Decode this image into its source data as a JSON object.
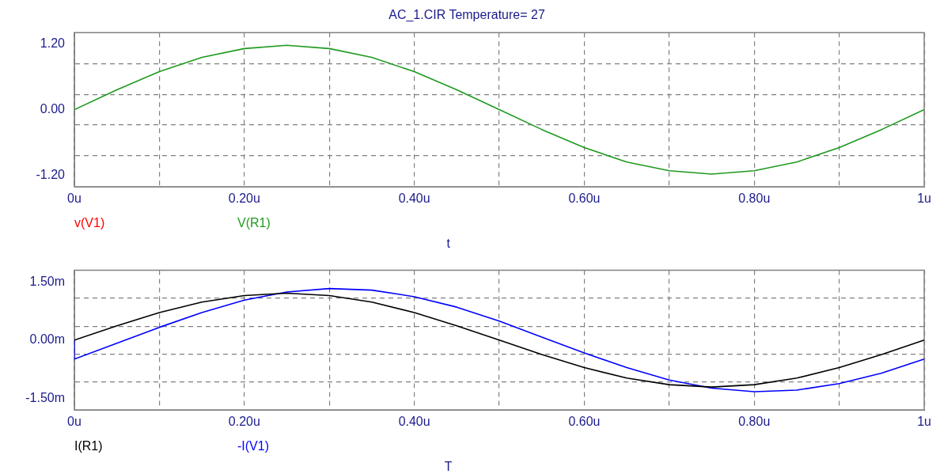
{
  "chart_data": [
    {
      "type": "line",
      "title": "AC_1.CIR Temperature= 27",
      "xlabel": "t",
      "legend": "bottom left",
      "grid": true,
      "marker": "none",
      "line_style": "solid",
      "x": [
        0,
        0.05,
        0.1,
        0.15,
        0.2,
        0.25,
        0.3,
        0.35,
        0.4,
        0.45,
        0.5,
        0.55,
        0.6,
        0.65,
        0.7,
        0.75,
        0.8,
        0.85,
        0.9,
        0.95,
        1
      ],
      "xlim": [
        0,
        1
      ],
      "xticks": [
        {
          "value": 0,
          "label": "0u"
        },
        {
          "value": 0.1,
          "label": null
        },
        {
          "value": 0.2,
          "label": "0.20u"
        },
        {
          "value": 0.3,
          "label": null
        },
        {
          "value": 0.4,
          "label": "0.40u"
        },
        {
          "value": 0.5,
          "label": null
        },
        {
          "value": 0.6,
          "label": "0.60u"
        },
        {
          "value": 0.7,
          "label": null
        },
        {
          "value": 0.8,
          "label": "0.80u"
        },
        {
          "value": 0.9,
          "label": null
        },
        {
          "value": 1,
          "label": "1u"
        }
      ],
      "ylim": [
        -1.4,
        1.4
      ],
      "yticks": [
        {
          "value": 1.2,
          "label": "1.20"
        },
        {
          "value": 0.84,
          "label": null
        },
        {
          "value": 0.28,
          "label": null
        },
        {
          "value": 0,
          "label": "0.00"
        },
        {
          "value": -0.28,
          "label": null
        },
        {
          "value": -0.84,
          "label": null
        },
        {
          "value": -1.2,
          "label": "-1.20"
        }
      ],
      "series": [
        {
          "name": "v(V1)",
          "color": "#ff0000",
          "values": [
            null,
            null,
            null,
            null,
            null,
            null,
            null,
            null,
            null,
            null,
            null,
            null,
            null,
            null,
            null,
            null,
            null,
            null,
            null,
            null,
            null
          ]
        },
        {
          "name": "V(R1)",
          "color": "#1e9a1e",
          "values": [
            0,
            0.36,
            0.69,
            0.95,
            1.11,
            1.17,
            1.11,
            0.95,
            0.69,
            0.36,
            0,
            -0.36,
            -0.69,
            -0.95,
            -1.11,
            -1.17,
            -1.11,
            -0.95,
            -0.69,
            -0.36,
            0
          ]
        }
      ]
    },
    {
      "type": "line",
      "xlabel": "T",
      "legend": "bottom left",
      "grid": true,
      "marker": "none",
      "line_style": "solid",
      "x": [
        0,
        0.05,
        0.1,
        0.15,
        0.2,
        0.25,
        0.3,
        0.35,
        0.4,
        0.45,
        0.5,
        0.55,
        0.6,
        0.65,
        0.7,
        0.75,
        0.8,
        0.85,
        0.9,
        0.95,
        1
      ],
      "xlim": [
        0,
        1
      ],
      "xticks": [
        {
          "value": 0,
          "label": "0u"
        },
        {
          "value": 0.1,
          "label": null
        },
        {
          "value": 0.2,
          "label": "0.20u"
        },
        {
          "value": 0.3,
          "label": null
        },
        {
          "value": 0.4,
          "label": "0.40u"
        },
        {
          "value": 0.5,
          "label": null
        },
        {
          "value": 0.6,
          "label": "0.60u"
        },
        {
          "value": 0.7,
          "label": null
        },
        {
          "value": 0.8,
          "label": "0.80u"
        },
        {
          "value": 0.9,
          "label": null
        },
        {
          "value": 1,
          "label": "1u"
        }
      ],
      "ylim": [
        -1.8,
        1.8
      ],
      "yticks": [
        {
          "value": 1.5,
          "label": "1.50m"
        },
        {
          "value": 1.08,
          "label": null
        },
        {
          "value": 0.36,
          "label": null
        },
        {
          "value": 0,
          "label": "0.00m"
        },
        {
          "value": -0.36,
          "label": null
        },
        {
          "value": -1.08,
          "label": null
        },
        {
          "value": -1.5,
          "label": "-1.50m"
        }
      ],
      "series": [
        {
          "name": "I(R1)",
          "color": "#000000",
          "values": [
            0,
            0.37,
            0.71,
            0.98,
            1.15,
            1.21,
            1.15,
            0.98,
            0.71,
            0.37,
            0,
            -0.37,
            -0.71,
            -0.98,
            -1.15,
            -1.21,
            -1.15,
            -0.98,
            -0.71,
            -0.37,
            0
          ]
        },
        {
          "name": "-I(V1)",
          "color": "#0000ff",
          "x": [
            0,
            0,
            0.05,
            0.1,
            0.15,
            0.2,
            0.25,
            0.3,
            0.35,
            0.4,
            0.45,
            0.5,
            0.55,
            0.6,
            0.65,
            0.7,
            0.75,
            0.8,
            0.85,
            0.9,
            0.95,
            1
          ],
          "values": [
            0,
            -0.49,
            -0.08,
            0.33,
            0.71,
            1.03,
            1.24,
            1.33,
            1.29,
            1.12,
            0.85,
            0.49,
            0.08,
            -0.33,
            -0.71,
            -1.03,
            -1.24,
            -1.33,
            -1.29,
            -1.12,
            -0.85,
            -0.49
          ]
        }
      ]
    }
  ]
}
